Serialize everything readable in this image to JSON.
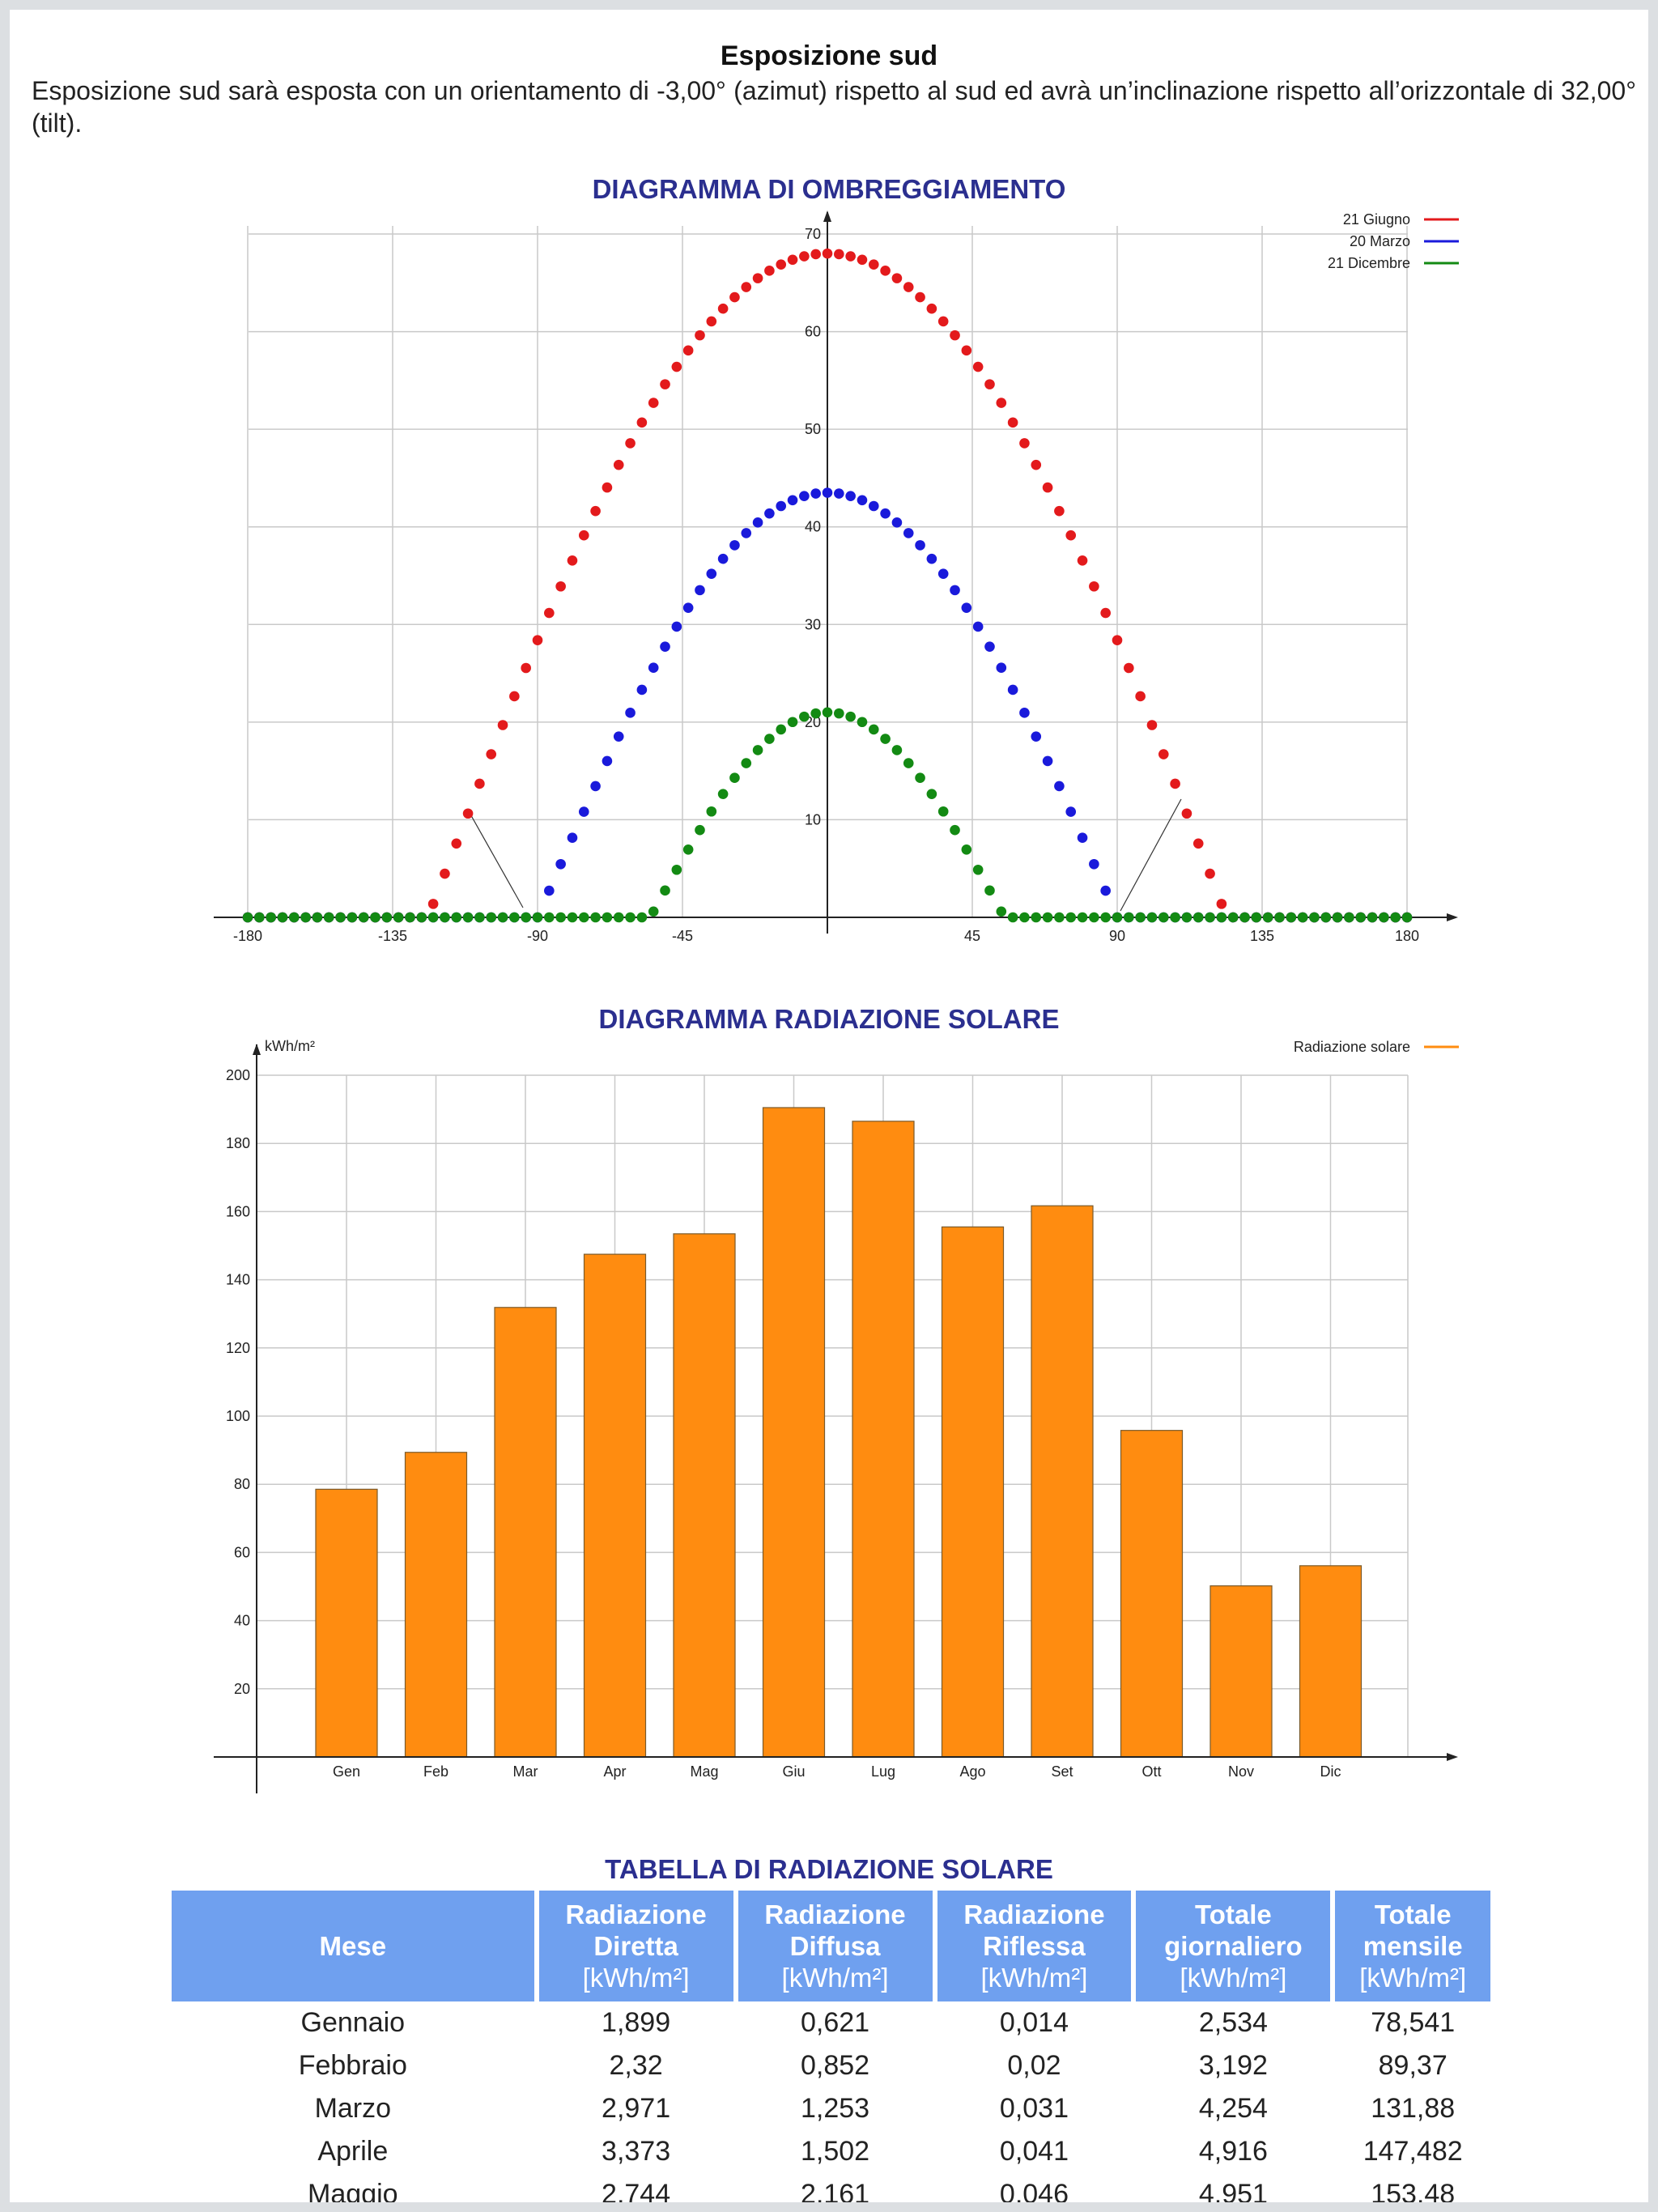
{
  "section": {
    "title": "Esposizione sud",
    "description": "Esposizione sud sarà esposta con un orientamento di -3,00° (azimut) rispetto al sud ed avrà un’inclinazione rispetto all’orizzontale di 32,00° (tilt)."
  },
  "colors": {
    "june": "#e31a1c",
    "march": "#1a1adb",
    "december": "#138a13",
    "bar": "#ff8c10",
    "table_header": "#6fa0ef"
  },
  "chart_data": [
    {
      "type": "scatter",
      "title": "DIAGRAMMA DI OMBREGGIAMENTO",
      "xlim": [
        -180,
        180
      ],
      "ylim": [
        0,
        70
      ],
      "x_ticks": [
        -180,
        -135,
        -90,
        -45,
        0,
        45,
        90,
        135,
        180
      ],
      "x_tick_labels": [
        "-180",
        "-135",
        "-90",
        "-45",
        "",
        "45",
        "90",
        "135",
        "180"
      ],
      "y_ticks": [
        10,
        20,
        30,
        40,
        50,
        60,
        70
      ],
      "grid": true,
      "legend_position": "top-right",
      "series": [
        {
          "name": "21 Giugno",
          "color": "#e31a1c",
          "peak_altitude": 68,
          "sunrise_azimuth": -124,
          "sunset_azimuth": 124
        },
        {
          "name": "20 Marzo",
          "color": "#1a1adb",
          "peak_altitude": 43.5,
          "sunrise_azimuth": -90,
          "sunset_azimuth": 90
        },
        {
          "name": "21 Dicembre",
          "color": "#138a13",
          "peak_altitude": 21,
          "sunrise_azimuth": -55,
          "sunset_azimuth": 55
        }
      ]
    },
    {
      "type": "bar",
      "title": "DIAGRAMMA RADIAZIONE SOLARE",
      "ylabel": "kWh/m²",
      "categories": [
        "Gen",
        "Feb",
        "Mar",
        "Apr",
        "Mag",
        "Giu",
        "Lug",
        "Ago",
        "Set",
        "Ott",
        "Nov",
        "Dic"
      ],
      "series": [
        {
          "name": "Radiazione solare",
          "values": [
            78.541,
            89.37,
            131.88,
            147.482,
            153.48,
            190.5,
            186.5,
            155.5,
            161.7,
            95.8,
            50.2,
            56.1
          ]
        }
      ],
      "ylim": [
        0,
        200
      ],
      "y_ticks": [
        20,
        40,
        60,
        80,
        100,
        120,
        140,
        160,
        180,
        200
      ],
      "grid": true,
      "legend_position": "top-right"
    },
    {
      "type": "table",
      "title": "TABELLA DI RADIAZIONE SOLARE",
      "headers": [
        {
          "bold": "Mese",
          "unit": ""
        },
        {
          "bold": "Radiazione Diretta",
          "unit": "[kWh/m²]"
        },
        {
          "bold": "Radiazione Diffusa",
          "unit": "[kWh/m²]"
        },
        {
          "bold": "Radiazione Riflessa",
          "unit": "[kWh/m²]"
        },
        {
          "bold": "Totale giornaliero",
          "unit": "[kWh/m²]"
        },
        {
          "bold": "Totale mensile",
          "unit": "[kWh/m²]"
        }
      ],
      "rows": [
        [
          "Gennaio",
          "1,899",
          "0,621",
          "0,014",
          "2,534",
          "78,541"
        ],
        [
          "Febbraio",
          "2,32",
          "0,852",
          "0,02",
          "3,192",
          "89,37"
        ],
        [
          "Marzo",
          "2,971",
          "1,253",
          "0,031",
          "4,254",
          "131,88"
        ],
        [
          "Aprile",
          "3,373",
          "1,502",
          "0,041",
          "4,916",
          "147,482"
        ],
        [
          "Maggio",
          "2,744",
          "2,161",
          "0,046",
          "4,951",
          "153,48"
        ]
      ]
    }
  ]
}
